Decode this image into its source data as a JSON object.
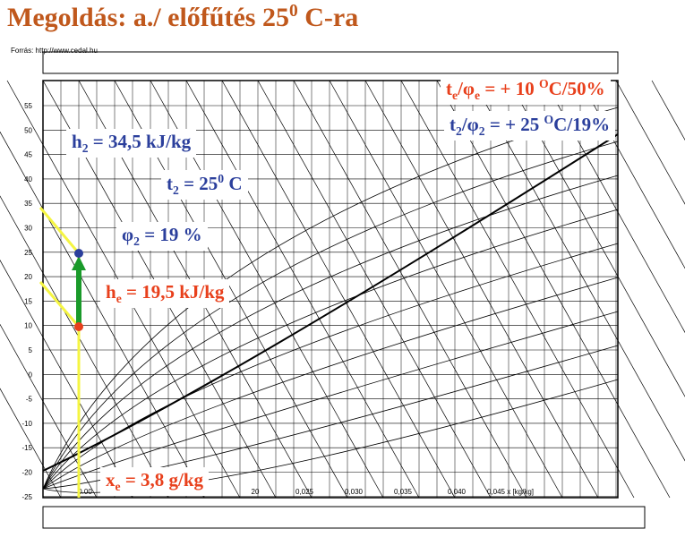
{
  "title": {
    "main": "Megoldás: a./ előfűtés 25",
    "sup": "0",
    "tail": " C-ra"
  },
  "source": "Forrás: http://www.cedal.hu",
  "y_axis": {
    "ticks": [
      "55",
      "50",
      "45",
      "40",
      "35",
      "30",
      "25",
      "20",
      "15",
      "10",
      "5",
      "0",
      "-5",
      "-10",
      "-15",
      "-20",
      "-25"
    ]
  },
  "x_axis": {
    "ticks": [
      "0.00",
      "20",
      "0,025",
      "0,030",
      "0,035",
      "0,040",
      "0,045 x [kg/kg]"
    ]
  },
  "labels": {
    "te": {
      "a": "t",
      "a_sub": "e",
      "mid": "/φ",
      "b_sub": "e",
      "eq": " = + 10 ",
      "sup": "O",
      "unit": "C/50%"
    },
    "t2phi": {
      "a": "t",
      "a_sub": "2",
      "mid": "/φ",
      "b_sub": "2",
      "eq": " = + 25 ",
      "sup": "O",
      "unit": "C/19%"
    },
    "h2": {
      "symbol": "h",
      "sub": "2",
      "rest": " =  34,5 kJ/kg"
    },
    "t2": {
      "symbol": "t",
      "sub": "2",
      "rest": " =  25",
      "sup": "0",
      "unit": " C"
    },
    "phi2": {
      "symbol": "φ",
      "sub": "2",
      "rest": " =  19 %"
    },
    "he": {
      "symbol": "h",
      "sub": "e",
      "rest": " =  19,5 kJ/kg"
    },
    "xe": {
      "symbol": "x",
      "sub": "e",
      "rest": " =  3,8 g/kg"
    }
  }
}
